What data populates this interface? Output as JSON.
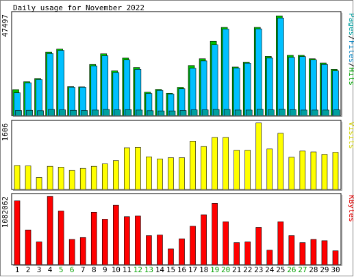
{
  "chart_data": {
    "type": "bar",
    "title": "Daily usage for November 2022",
    "categories": [
      "1",
      "2",
      "3",
      "4",
      "5",
      "6",
      "7",
      "8",
      "9",
      "10",
      "11",
      "12",
      "13",
      "14",
      "15",
      "16",
      "17",
      "18",
      "19",
      "20",
      "21",
      "22",
      "23",
      "24",
      "25",
      "26",
      "27",
      "28",
      "29",
      "30"
    ],
    "weekend_days": [
      5,
      6,
      12,
      13,
      19,
      20,
      26,
      27
    ],
    "panels": [
      {
        "id": "hits",
        "ymax_label": "47497",
        "ymax": 47497,
        "legend": [
          {
            "text": "Pages",
            "color": "#00a0a0"
          },
          {
            "text": "Files",
            "color": "#0080c0"
          },
          {
            "text": "Hits",
            "color": "#00a000"
          }
        ],
        "series": [
          {
            "name": "Hits",
            "color": "#00c000",
            "values": [
              12200,
              15900,
              17400,
              29800,
              31200,
              13600,
              13500,
              24000,
              29000,
              21000,
              27000,
              22600,
              11000,
              12300,
              10500,
              13300,
              23500,
              26700,
              34900,
              41400,
              22800,
              25000,
              41400,
              27800,
              46800,
              28300,
              28300,
              26700,
              24700,
              21700
            ]
          },
          {
            "name": "Files",
            "color": "#00c0ff",
            "values": [
              10700,
              15400,
              16900,
              29100,
              30600,
              13300,
              13300,
              23300,
              28100,
              20200,
              26100,
              21700,
              10400,
              11800,
              10100,
              12600,
              22200,
              25700,
              33200,
              40600,
              22300,
              24600,
              40700,
              27000,
              45800,
              27300,
              27700,
              26100,
              24000,
              21000
            ]
          },
          {
            "name": "Pages",
            "color": "#00a0a0",
            "values": [
              2400,
              2500,
              2300,
              2900,
              2700,
              2500,
              2400,
              2600,
              2900,
              2700,
              2800,
              2600,
              2300,
              2200,
              2200,
              2400,
              2700,
              2700,
              2900,
              2900,
              2600,
              2600,
              3000,
              2700,
              3000,
              2800,
              2600,
              2600,
              2600,
              2700
            ]
          }
        ]
      },
      {
        "id": "visits",
        "ymax_label": "1606",
        "ymax": 1606,
        "legend": [
          {
            "text": "Visits",
            "color": "#d0d000"
          }
        ],
        "series": [
          {
            "name": "Visits",
            "color": "#ffff00",
            "values": [
              580,
              570,
              290,
              560,
              540,
              460,
              510,
              560,
              620,
              700,
              1010,
              1020,
              790,
              740,
              770,
              770,
              1170,
              1040,
              1260,
              1260,
              950,
              950,
              1610,
              980,
              1360,
              780,
              930,
              910,
              850,
              900
            ]
          }
        ]
      },
      {
        "id": "kbytes",
        "ymax_label": "1082062",
        "ymax": 1082062,
        "legend": [
          {
            "text": "KBytes",
            "color": "#e00000"
          }
        ],
        "series": [
          {
            "name": "KBytes",
            "color": "#ff0000",
            "values": [
              1010000,
              550000,
              360000,
              1080000,
              850000,
              400000,
              430000,
              830000,
              720000,
              940000,
              760000,
              770000,
              460000,
              470000,
              250000,
              410000,
              610000,
              790000,
              970000,
              680000,
              350000,
              360000,
              590000,
              230000,
              680000,
              460000,
              350000,
              400000,
              380000,
              220000
            ]
          }
        ]
      }
    ]
  }
}
